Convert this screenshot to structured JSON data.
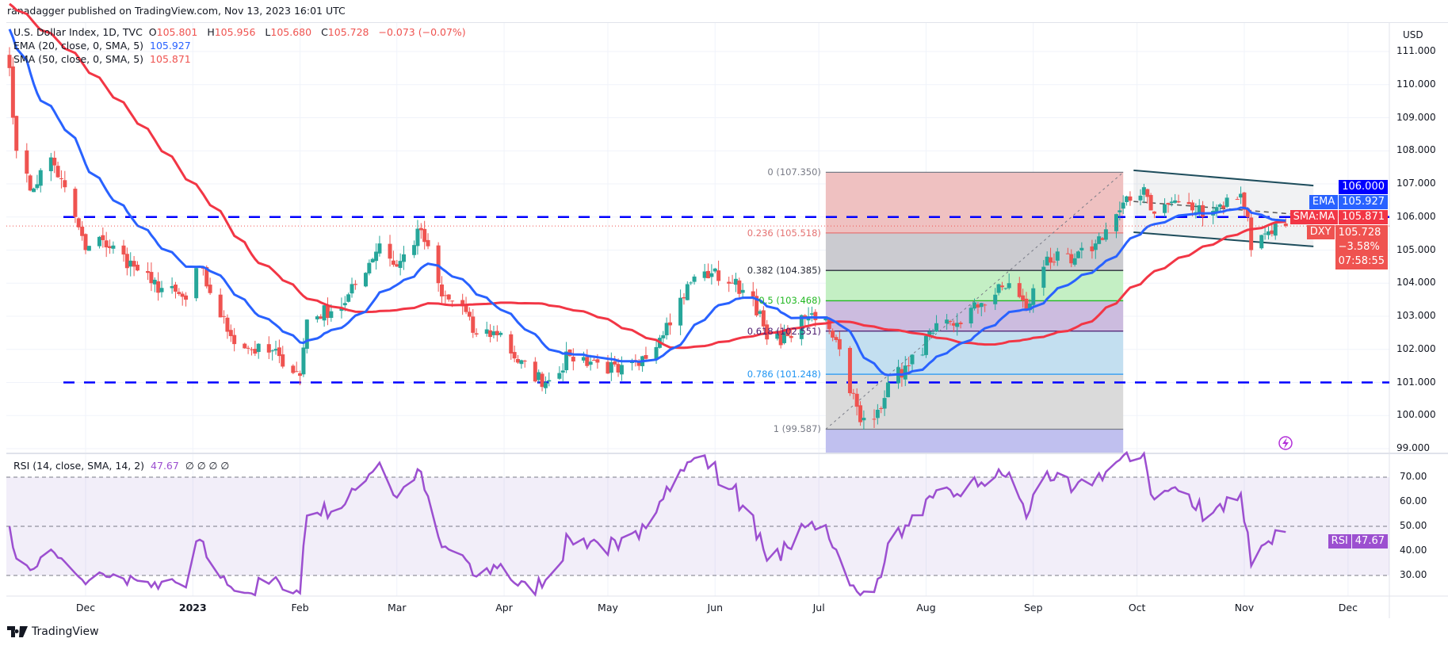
{
  "header": {
    "published": "ranadagger published on TradingView.com, Nov 13, 2023 16:01 UTC"
  },
  "legend": {
    "symbol": "U.S. Dollar Index, 1D, TVC",
    "o_label": "O",
    "o": "105.801",
    "h_label": "H",
    "h": "105.956",
    "l_label": "L",
    "l": "105.680",
    "c_label": "C",
    "c": "105.728",
    "change": "−0.073 (−0.07%)",
    "ema_label": "EMA (20, close, 0, SMA, 5)",
    "ema_value": "105.927",
    "sma_label": "SMA (50, close, 0, SMA, 5)",
    "sma_value": "105.871",
    "rsi_label": "RSI (14, close, SMA, 14, 2)",
    "rsi_value": "47.67",
    "rsi_nulls": "∅  ∅  ∅  ∅"
  },
  "badges": {
    "level": "106.000",
    "ema_tag": "EMA",
    "ema": "105.927",
    "sma_tag": "SMA:MA",
    "sma": "105.871",
    "sym_tag": "DXY",
    "price": "105.728",
    "pct": "−3.58%",
    "countdown": "07:58:55",
    "rsi_tag": "RSI",
    "rsi": "47.67"
  },
  "footer": {
    "brand": "TradingView"
  },
  "colors": {
    "up": "#26a69a",
    "down": "#ef5350",
    "ema": "#2962ff",
    "sma": "#f23645",
    "rsi": "#9c4fd0",
    "level_line": "#0000ff",
    "channel": "#1e4d5c"
  },
  "chart_data": {
    "type": "candlestick",
    "title": "U.S. Dollar Index, 1D, TVC",
    "price_axis": {
      "currency": "USD",
      "ylim": [
        98.9,
        111.9
      ],
      "ticks": [
        "111.000",
        "110.000",
        "109.000",
        "108.000",
        "107.000",
        "106.000",
        "105.000",
        "104.000",
        "103.000",
        "102.000",
        "101.000",
        "100.000",
        "99.000"
      ]
    },
    "rsi_axis": {
      "ticks": [
        "70.00",
        "60.00",
        "50.00",
        "40.00",
        "30.00"
      ],
      "bands": [
        30,
        70
      ]
    },
    "x_axis": [
      {
        "date": "2022-12-01",
        "label": "Dec"
      },
      {
        "date": "2023-01-01",
        "label": "2023",
        "bold": true
      },
      {
        "date": "2023-02-01",
        "label": "Feb"
      },
      {
        "date": "2023-03-01",
        "label": "Mar"
      },
      {
        "date": "2023-04-01",
        "label": "Apr"
      },
      {
        "date": "2023-05-01",
        "label": "May"
      },
      {
        "date": "2023-06-01",
        "label": "Jun"
      },
      {
        "date": "2023-07-01",
        "label": "Jul"
      },
      {
        "date": "2023-08-01",
        "label": "Aug"
      },
      {
        "date": "2023-09-01",
        "label": "Sep"
      },
      {
        "date": "2023-10-01",
        "label": "Oct"
      },
      {
        "date": "2023-11-01",
        "label": "Nov"
      },
      {
        "date": "2023-12-01",
        "label": "Dec"
      }
    ],
    "close_anchors": [
      [
        "2022-11-09",
        110.5
      ],
      [
        "2022-11-11",
        108.0
      ],
      [
        "2022-11-15",
        106.8
      ],
      [
        "2022-11-21",
        107.8
      ],
      [
        "2022-11-28",
        106.0
      ],
      [
        "2022-12-01",
        105.0
      ],
      [
        "2022-12-06",
        105.3
      ],
      [
        "2022-12-15",
        104.5
      ],
      [
        "2022-12-20",
        104.0
      ],
      [
        "2022-12-30",
        103.5
      ],
      [
        "2023-01-03",
        104.5
      ],
      [
        "2023-01-06",
        103.7
      ],
      [
        "2023-01-12",
        102.4
      ],
      [
        "2023-01-18",
        102.0
      ],
      [
        "2023-01-26",
        101.8
      ],
      [
        "2023-02-01",
        101.2
      ],
      [
        "2023-02-03",
        102.9
      ],
      [
        "2023-02-14",
        103.4
      ],
      [
        "2023-02-24",
        105.2
      ],
      [
        "2023-03-01",
        104.5
      ],
      [
        "2023-03-08",
        105.6
      ],
      [
        "2023-03-14",
        103.6
      ],
      [
        "2023-03-20",
        103.3
      ],
      [
        "2023-03-23",
        102.5
      ],
      [
        "2023-03-31",
        102.5
      ],
      [
        "2023-04-05",
        101.6
      ],
      [
        "2023-04-13",
        101.0
      ],
      [
        "2023-04-20",
        101.8
      ],
      [
        "2023-04-28",
        101.6
      ],
      [
        "2023-05-04",
        101.3
      ],
      [
        "2023-05-10",
        101.5
      ],
      [
        "2023-05-18",
        102.8
      ],
      [
        "2023-05-26",
        104.2
      ],
      [
        "2023-05-31",
        104.3
      ],
      [
        "2023-06-06",
        104.0
      ],
      [
        "2023-06-12",
        103.6
      ],
      [
        "2023-06-16",
        102.3
      ],
      [
        "2023-06-22",
        102.4
      ],
      [
        "2023-06-28",
        103.0
      ],
      [
        "2023-07-03",
        103.0
      ],
      [
        "2023-07-07",
        102.0
      ],
      [
        "2023-07-13",
        99.8
      ],
      [
        "2023-07-17",
        99.9
      ],
      [
        "2023-07-21",
        101.0
      ],
      [
        "2023-07-27",
        101.5
      ],
      [
        "2023-08-03",
        102.5
      ],
      [
        "2023-08-10",
        102.8
      ],
      [
        "2023-08-17",
        103.4
      ],
      [
        "2023-08-25",
        104.0
      ],
      [
        "2023-08-30",
        103.2
      ],
      [
        "2023-09-05",
        104.8
      ],
      [
        "2023-09-12",
        104.6
      ],
      [
        "2023-09-19",
        105.2
      ],
      [
        "2023-09-26",
        106.2
      ],
      [
        "2023-10-03",
        106.9
      ],
      [
        "2023-10-06",
        106.1
      ],
      [
        "2023-10-12",
        106.5
      ],
      [
        "2023-10-17",
        106.2
      ],
      [
        "2023-10-24",
        106.3
      ],
      [
        "2023-10-31",
        106.7
      ],
      [
        "2023-11-02",
        106.0
      ],
      [
        "2023-11-03",
        105.0
      ],
      [
        "2023-11-07",
        105.5
      ],
      [
        "2023-11-10",
        105.8
      ],
      [
        "2023-11-13",
        105.728
      ]
    ],
    "horizontal_levels": [
      106.0,
      101.0
    ],
    "fib_retracement": {
      "start": {
        "date": "2023-07-03",
        "price": 99.587
      },
      "end": {
        "date": "2023-09-27",
        "price": 107.35
      },
      "levels": [
        {
          "ratio": "0",
          "price": 107.35,
          "label": "0 (107.350)",
          "color": "#787b86",
          "fill": "#efc1c1"
        },
        {
          "ratio": "0.236",
          "price": 105.518,
          "label": "0.236 (105.518)",
          "color": "#e57373",
          "fill": "#cbcbd0"
        },
        {
          "ratio": "0.382",
          "price": 104.385,
          "label": "0.382 (104.385)",
          "color": "#2a2e39",
          "fill": "#c4efc4"
        },
        {
          "ratio": "0.5",
          "price": 103.468,
          "label": "0.5 (103.468)",
          "color": "#22b822",
          "fill": "#ccbcdf"
        },
        {
          "ratio": "0.618",
          "price": 102.551,
          "label": "0.618 (102.551)",
          "color": "#4a1a6e",
          "fill": "#c3dff0"
        },
        {
          "ratio": "0.786",
          "price": 101.248,
          "label": "0.786 (101.248)",
          "color": "#2196f3",
          "fill": "#dadada"
        },
        {
          "ratio": "1",
          "price": 99.587,
          "label": "1 (99.587)",
          "color": "#787b86",
          "fill": "#c0c0ef"
        }
      ]
    },
    "channel": {
      "upper": [
        [
          "2023-09-30",
          107.41
        ],
        [
          "2023-11-21",
          106.95
        ]
      ],
      "middle": [
        [
          "2023-09-30",
          106.47
        ],
        [
          "2023-11-21",
          106.04
        ]
      ],
      "lower": [
        [
          "2023-09-30",
          105.54
        ],
        [
          "2023-11-21",
          105.11
        ]
      ]
    }
  }
}
